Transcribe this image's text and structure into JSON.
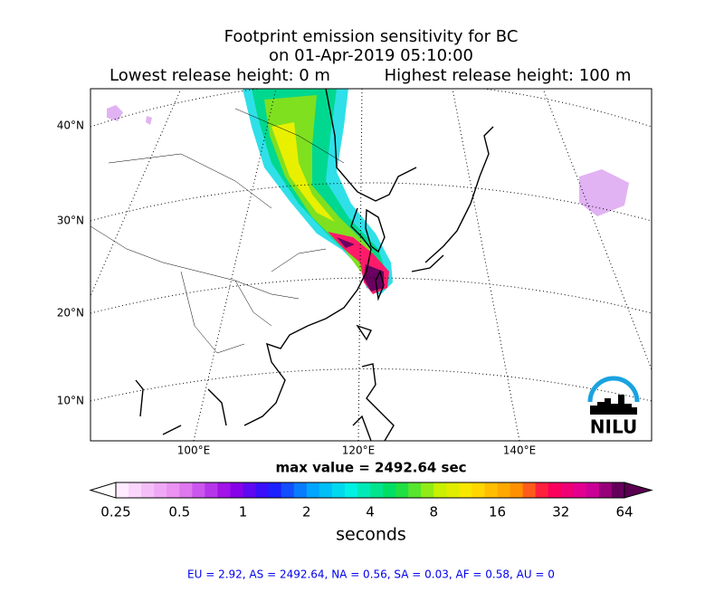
{
  "title": {
    "line1": "Footprint emission sensitivity for BC",
    "line2": "on 01-Apr-2019 05:10:00",
    "left": "Lowest release height: 0 m",
    "right": "Highest release height: 100 m"
  },
  "map": {
    "lat_labels": [
      "40°N",
      "30°N",
      "20°N",
      "10°N"
    ],
    "lon_labels": [
      "100°E",
      "120°E",
      "140°E"
    ],
    "logo": "NILU"
  },
  "max_value": "max value = 2492.64 sec",
  "colorbar": {
    "ticks": [
      "0.25",
      "0.5",
      "1",
      "2",
      "4",
      "8",
      "16",
      "32",
      "64"
    ],
    "label": "seconds"
  },
  "footer": "EU = 2.92,  AS = 2492.64,  NA = 0.56,  SA = 0.03,  AF = 0.58,  AU = 0"
}
